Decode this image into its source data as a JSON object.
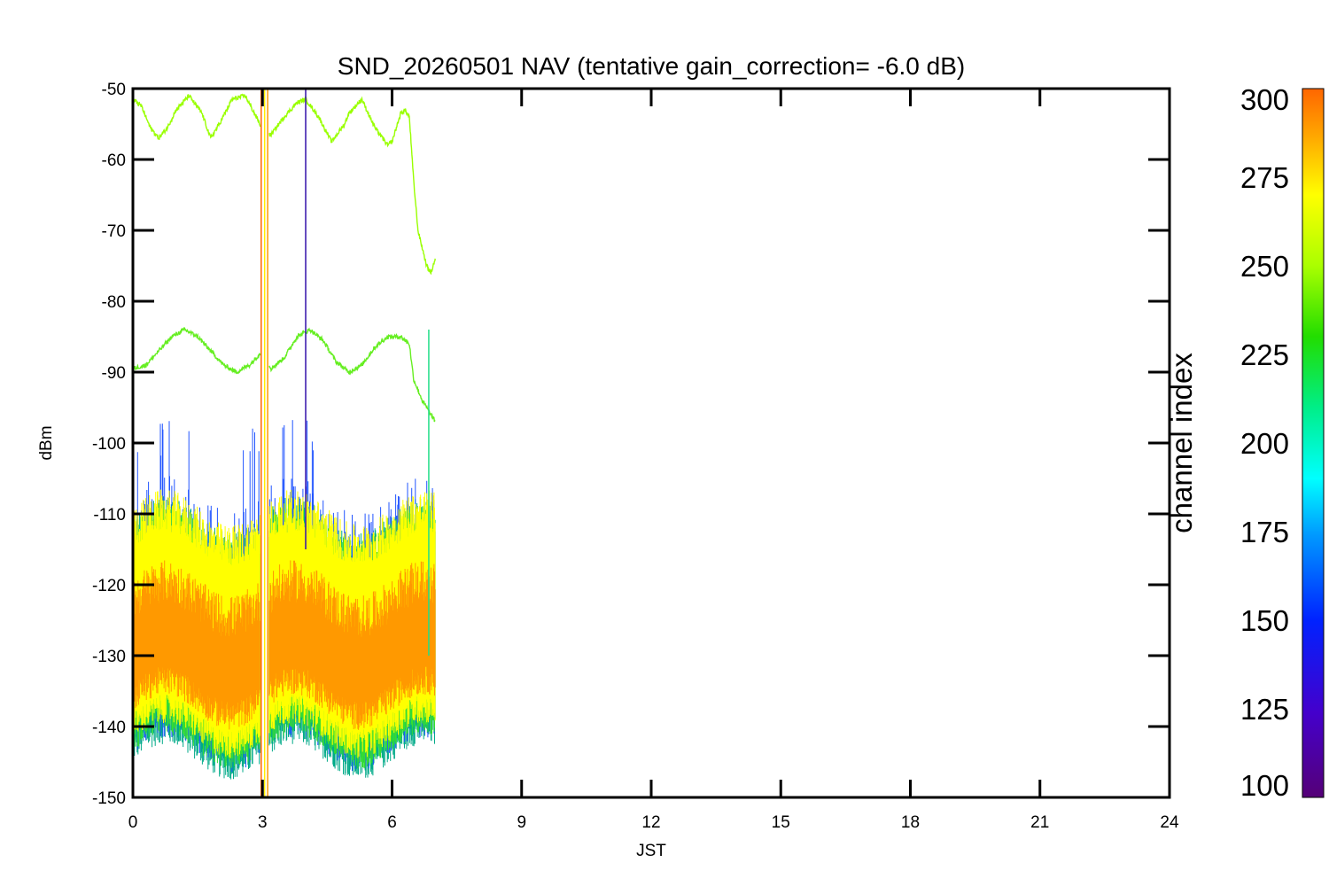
{
  "chart_data": {
    "type": "line",
    "title": "SND_20260501 NAV (tentative gain_correction= -6.0 dB)",
    "xlabel": "JST",
    "ylabel": "dBm",
    "xlim": [
      0,
      24
    ],
    "ylim": [
      -150,
      -50
    ],
    "xticks": [
      "0",
      "3",
      "6",
      "9",
      "12",
      "15",
      "18",
      "21",
      "24"
    ],
    "yticks": [
      "-50",
      "-60",
      "-70",
      "-80",
      "-90",
      "-100",
      "-110",
      "-120",
      "-130",
      "-140",
      "-150"
    ],
    "colorbar": {
      "label": "channel index",
      "range": [
        100,
        300
      ],
      "ticks": [
        "300",
        "275",
        "250",
        "225",
        "200",
        "175",
        "150",
        "125",
        "100"
      ]
    },
    "data_time_span": [
      0,
      7
    ],
    "series": [
      {
        "channel_index": 262,
        "color": "#99ff00",
        "x": [
          0,
          0.2,
          0.4,
          0.6,
          0.8,
          1.0,
          1.3,
          1.6,
          1.8,
          2.0,
          2.3,
          2.6,
          2.9,
          3.05,
          3.2,
          3.5,
          3.8,
          4.0,
          4.3,
          4.6,
          4.9,
          5.0,
          5.3,
          5.6,
          5.9,
          6.0,
          6.2,
          6.3,
          6.4,
          6.5,
          6.6,
          6.8,
          6.9,
          7.0
        ],
        "values": [
          -51.5,
          -52.5,
          -55.5,
          -57.0,
          -55.5,
          -53.0,
          -51.0,
          -53.5,
          -57.0,
          -55.0,
          -51.5,
          -51.0,
          -54.5,
          -56.5,
          -56.5,
          -54.0,
          -52.0,
          -51.5,
          -54.0,
          -57.5,
          -55.0,
          -53.5,
          -51.5,
          -55.5,
          -58.0,
          -57.5,
          -53.5,
          -53.0,
          -54.0,
          -63.0,
          -70.0,
          -75.0,
          -76.0,
          -74.0
        ]
      },
      {
        "channel_index": 245,
        "color": "#66ee22",
        "x": [
          0,
          0.3,
          0.6,
          0.9,
          1.2,
          1.5,
          1.8,
          2.1,
          2.4,
          2.7,
          3.0,
          3.2,
          3.5,
          3.8,
          4.1,
          4.4,
          4.7,
          5.0,
          5.3,
          5.6,
          5.9,
          6.2,
          6.4,
          6.5,
          6.7,
          7.0
        ],
        "values": [
          -89.5,
          -89.0,
          -87.0,
          -85.0,
          -84.0,
          -85.0,
          -87.0,
          -89.0,
          -90.0,
          -89.0,
          -87.0,
          -89.5,
          -88.0,
          -85.0,
          -84.0,
          -85.5,
          -88.5,
          -90.0,
          -89.0,
          -86.5,
          -85.0,
          -85.0,
          -86.0,
          -91.0,
          -94.0,
          -97.0
        ]
      }
    ],
    "noise_band": {
      "description_values": [
        -138,
        -128,
        -118
      ],
      "orange_core": [
        -136,
        -122
      ],
      "yellow_envelope": [
        -140,
        -112
      ],
      "spike_peak": -95
    },
    "vertical_markers": [
      {
        "x": 2.97,
        "color": "#ff6600"
      },
      {
        "x": 3.05,
        "color": "#ffee00"
      },
      {
        "x": 3.12,
        "color": "#ff9900"
      },
      {
        "x": 4.0,
        "color": "#3311aa"
      },
      {
        "x": 6.85,
        "color": "#22dd88"
      }
    ]
  }
}
